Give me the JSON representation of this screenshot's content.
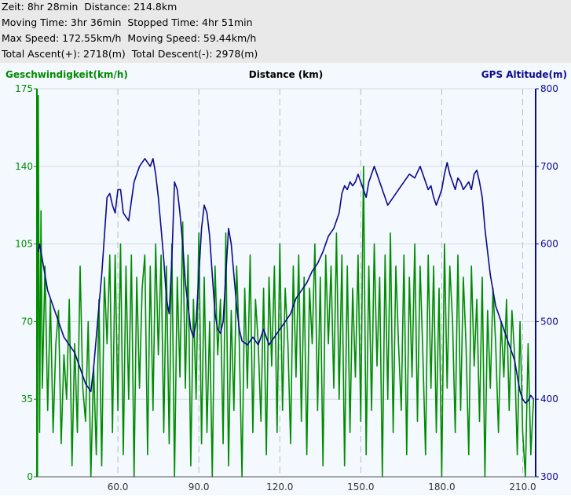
{
  "stats": {
    "line1": "Zeit: 8hr 28min  Distance: 214.8km",
    "line2": "Moving Time: 3hr 36min  Stopped Time: 4hr 51min",
    "line3": "Max Speed: 172.55km/h  Moving Speed: 59.44km/h",
    "line4": "Total Ascent(+): 2718(m)  Total Descent(-): 2978(m)"
  },
  "colors": {
    "speed": "#008c00",
    "altitude": "#0a0a8c",
    "grid": "#b9bcc4",
    "background": "#f4f8ff"
  },
  "chart_data": {
    "type": "line",
    "xlabel": "Distance (km)",
    "ylabel_left": "Geschwindigkeit(km/h)",
    "ylabel_right": "GPS Altitude(m)",
    "xlim": [
      30,
      214.8
    ],
    "ylim_left": [
      0,
      175
    ],
    "ylim_right": [
      300,
      800
    ],
    "x_ticks": [
      "60.0",
      "90.0",
      "120.0",
      "150.0",
      "180.0",
      "210.0"
    ],
    "x_tick_values": [
      60,
      90,
      120,
      150,
      180,
      210
    ],
    "y_left_ticks": [
      "0",
      "35",
      "70",
      "105",
      "140",
      "175"
    ],
    "y_right_ticks": [
      "300",
      "400",
      "500",
      "600",
      "700",
      "800"
    ],
    "grid": true,
    "series": [
      {
        "name": "GPS Altitude(m)",
        "axis": "right",
        "x": [
          30.5,
          31,
          32,
          33,
          34,
          36,
          38,
          40,
          42,
          44,
          46,
          48,
          50,
          51,
          52,
          53,
          54,
          55,
          56,
          57,
          58,
          59,
          60,
          61,
          62,
          64,
          66,
          68,
          70,
          71,
          72,
          73,
          74,
          75,
          76,
          77,
          78,
          79,
          80,
          81,
          82,
          83,
          84,
          85,
          86,
          87,
          88,
          89,
          90,
          91,
          92,
          93,
          94,
          95,
          96,
          97,
          98,
          99,
          100,
          101,
          102,
          103,
          104,
          105,
          106,
          108,
          110,
          112,
          114,
          116,
          118,
          120,
          122,
          124,
          126,
          128,
          130,
          132,
          134,
          136,
          138,
          140,
          142,
          143,
          144,
          145,
          146,
          147,
          148,
          149,
          150,
          151,
          152,
          153,
          154,
          155,
          156,
          158,
          160,
          162,
          164,
          166,
          168,
          170,
          172,
          173,
          174,
          175,
          176,
          177,
          178,
          179,
          180,
          181,
          182,
          183,
          184,
          185,
          186,
          187,
          188,
          189,
          190,
          191,
          192,
          193,
          194,
          195,
          196,
          197,
          198,
          199,
          200,
          201,
          202,
          203,
          204,
          205,
          206,
          207,
          208,
          209,
          210,
          211,
          212,
          213,
          214
        ],
        "y": [
          590,
          600,
          580,
          560,
          540,
          520,
          500,
          480,
          470,
          460,
          440,
          420,
          410,
          440,
          480,
          520,
          560,
          610,
          660,
          665,
          650,
          640,
          670,
          670,
          640,
          630,
          680,
          700,
          710,
          705,
          700,
          710,
          690,
          660,
          620,
          580,
          530,
          510,
          580,
          680,
          670,
          640,
          600,
          550,
          520,
          490,
          480,
          500,
          560,
          620,
          650,
          640,
          610,
          560,
          510,
          490,
          485,
          500,
          560,
          620,
          600,
          560,
          520,
          490,
          475,
          470,
          480,
          470,
          490,
          470,
          480,
          490,
          500,
          510,
          530,
          540,
          550,
          565,
          575,
          590,
          610,
          620,
          640,
          665,
          675,
          670,
          680,
          675,
          680,
          690,
          680,
          670,
          660,
          680,
          690,
          700,
          690,
          670,
          650,
          660,
          670,
          680,
          690,
          685,
          700,
          690,
          680,
          670,
          675,
          660,
          650,
          660,
          670,
          690,
          705,
          690,
          680,
          670,
          685,
          680,
          670,
          675,
          680,
          670,
          690,
          695,
          680,
          660,
          620,
          590,
          560,
          540,
          520,
          510,
          500,
          490,
          480,
          470,
          460,
          450,
          430,
          410,
          400,
          395,
          398,
          405,
          400
        ]
      },
      {
        "name": "Geschwindigkeit(km/h)",
        "axis": "left",
        "x": [
          30.2,
          30.5,
          31,
          31.5,
          32,
          33,
          34,
          35,
          36,
          37,
          38,
          39,
          40,
          41,
          42,
          43,
          44,
          45,
          46,
          47,
          48,
          49,
          50,
          51,
          52,
          53,
          54,
          55,
          56,
          57,
          58,
          59,
          60,
          61,
          62,
          63,
          64,
          65,
          66,
          67,
          68,
          69,
          70,
          71,
          72,
          73,
          74,
          75,
          76,
          77,
          78,
          79,
          80,
          81,
          82,
          83,
          84,
          85,
          86,
          87,
          88,
          89,
          90,
          91,
          92,
          93,
          94,
          95,
          96,
          97,
          98,
          99,
          100,
          101,
          102,
          103,
          104,
          105,
          106,
          107,
          108,
          109,
          110,
          111,
          112,
          113,
          114,
          115,
          116,
          117,
          118,
          119,
          120,
          121,
          122,
          123,
          124,
          125,
          126,
          127,
          128,
          129,
          130,
          131,
          132,
          133,
          134,
          135,
          136,
          137,
          138,
          139,
          140,
          141,
          142,
          143,
          144,
          145,
          146,
          147,
          148,
          149,
          150,
          151,
          152,
          153,
          154,
          155,
          156,
          157,
          158,
          159,
          160,
          161,
          162,
          163,
          164,
          165,
          166,
          167,
          168,
          169,
          170,
          171,
          172,
          173,
          174,
          175,
          176,
          177,
          178,
          179,
          180,
          181,
          182,
          183,
          184,
          185,
          186,
          187,
          188,
          189,
          190,
          191,
          192,
          193,
          194,
          195,
          196,
          197,
          198,
          199,
          200,
          201,
          202,
          203,
          204,
          205,
          206,
          207,
          208,
          209,
          210,
          211,
          212,
          213,
          214
        ],
        "y": [
          0,
          172,
          20,
          120,
          40,
          95,
          30,
          80,
          20,
          60,
          75,
          15,
          55,
          35,
          80,
          5,
          60,
          20,
          95,
          40,
          25,
          70,
          0,
          50,
          10,
          80,
          5,
          90,
          60,
          100,
          20,
          100,
          30,
          105,
          10,
          95,
          35,
          100,
          0,
          90,
          40,
          85,
          100,
          10,
          95,
          30,
          105,
          55,
          100,
          20,
          95,
          15,
          105,
          0,
          90,
          45,
          115,
          40,
          100,
          5,
          80,
          35,
          110,
          15,
          90,
          20,
          70,
          0,
          95,
          55,
          80,
          15,
          110,
          5,
          75,
          30,
          95,
          60,
          0,
          85,
          40,
          100,
          20,
          80,
          60,
          25,
          85,
          10,
          90,
          50,
          95,
          20,
          105,
          30,
          85,
          60,
          15,
          95,
          45,
          100,
          25,
          90,
          10,
          85,
          60,
          105,
          30,
          90,
          5,
          100,
          60,
          95,
          40,
          110,
          35,
          100,
          5,
          95,
          20,
          85,
          45,
          100,
          25,
          140,
          10,
          95,
          30,
          105,
          50,
          90,
          0,
          100,
          35,
          110,
          20,
          95,
          60,
          30,
          100,
          10,
          90,
          45,
          105,
          25,
          95,
          55,
          10,
          100,
          40,
          95,
          20,
          85,
          0,
          105,
          40,
          95,
          70,
          20,
          100,
          30,
          90,
          60,
          10,
          95,
          50,
          80,
          25,
          90,
          0,
          75,
          40,
          85,
          60,
          20,
          70,
          45,
          80,
          30,
          75,
          55,
          10,
          70,
          20,
          0,
          60,
          10,
          35
        ]
      }
    ]
  }
}
